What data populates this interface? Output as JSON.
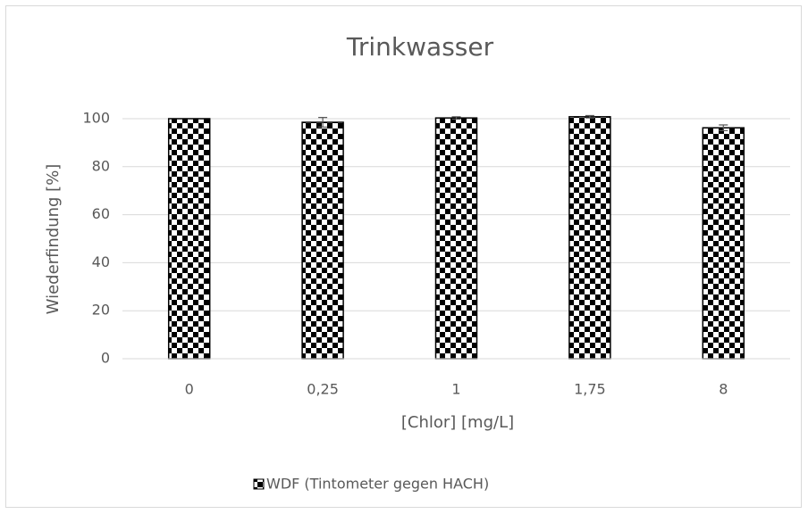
{
  "chart_data": {
    "type": "bar",
    "title": "Trinkwasser",
    "x_label": "[Chlor] [mg/L]",
    "y_label": "Wiederfindung [%]",
    "categories": [
      "0",
      "0,25",
      "1",
      "1,75",
      "8"
    ],
    "series": [
      {
        "name": "WDF (Tintometer gegen HACH)",
        "color": "#000000",
        "values": [
          100,
          98.5,
          100.3,
          100.8,
          96.2
        ],
        "errors": [
          0,
          2,
          0.5,
          0.5,
          1.2
        ]
      }
    ],
    "ylim": [
      0,
      100
    ],
    "yticks": [
      0,
      20,
      40,
      60,
      80,
      100
    ],
    "grid": true,
    "legend": "bottom"
  }
}
